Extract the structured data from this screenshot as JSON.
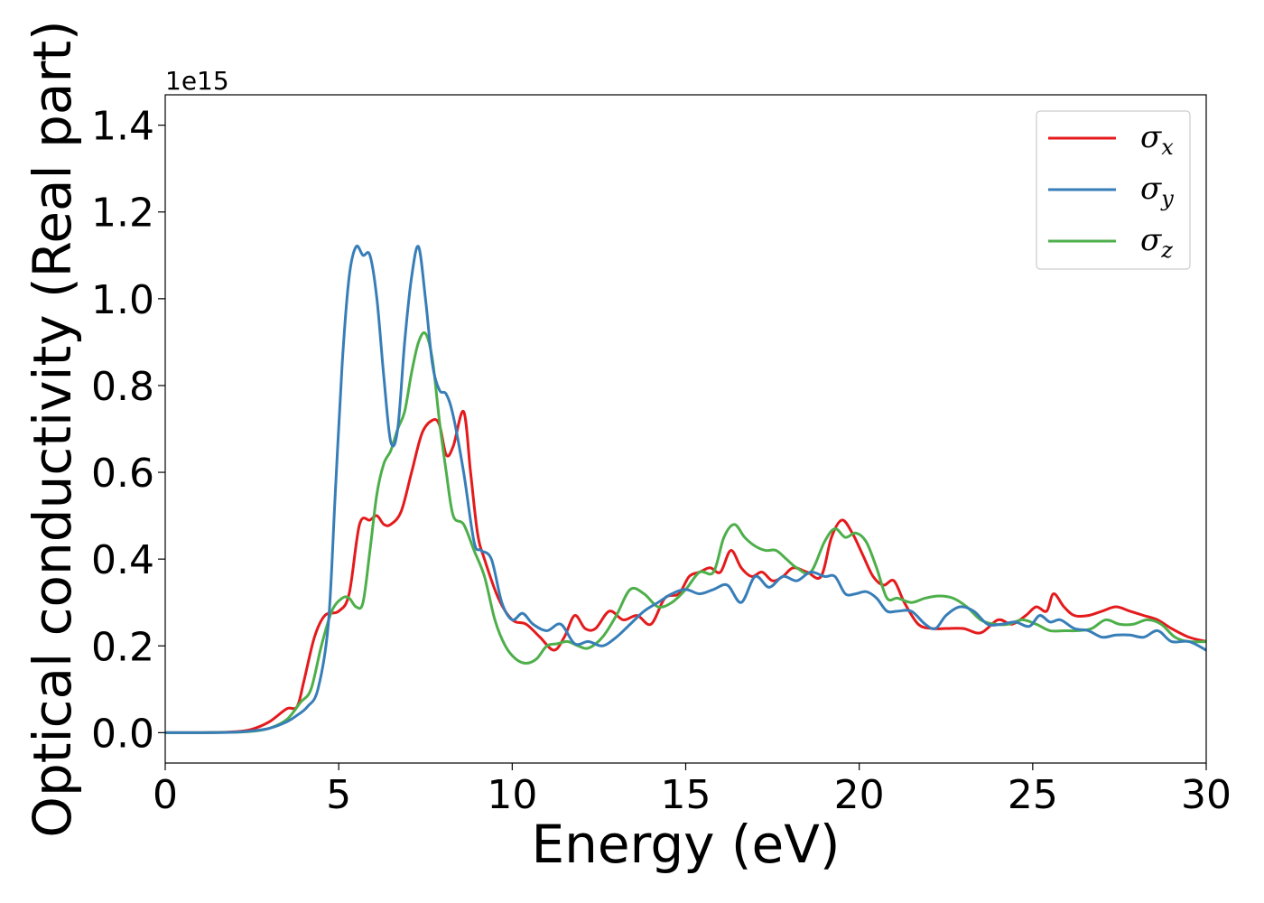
{
  "chart_data": {
    "type": "line",
    "xlabel": "Energy (eV)",
    "ylabel": "Optical conductivity (Real part)",
    "y_offset_text": "1e15",
    "xlim": [
      0,
      30
    ],
    "ylim": [
      -0.07,
      1.47
    ],
    "xticks": [
      0,
      5,
      10,
      15,
      20,
      25,
      30
    ],
    "xtick_labels": [
      "0",
      "5",
      "10",
      "15",
      "20",
      "25",
      "30"
    ],
    "yticks": [
      0.0,
      0.2,
      0.4,
      0.6,
      0.8,
      1.0,
      1.2,
      1.4
    ],
    "ytick_labels": [
      "0.0",
      "0.2",
      "0.4",
      "0.6",
      "0.8",
      "1.0",
      "1.2",
      "1.4"
    ],
    "grid": false,
    "legend_position": "top-right",
    "series": [
      {
        "name": "σx",
        "legend_base": "σ",
        "legend_sub": "x",
        "color": "#e41a1c",
        "x": [
          0,
          1,
          2,
          2.5,
          3,
          3.5,
          3.8,
          4.0,
          4.3,
          4.6,
          5.0,
          5.3,
          5.6,
          5.9,
          6.1,
          6.3,
          6.5,
          6.8,
          7.1,
          7.4,
          7.7,
          7.9,
          8.1,
          8.3,
          8.6,
          8.8,
          9.0,
          9.2,
          9.6,
          10.0,
          10.4,
          10.8,
          11.2,
          11.5,
          11.8,
          12.1,
          12.4,
          12.8,
          13.2,
          13.6,
          14.0,
          14.4,
          14.8,
          15.1,
          15.4,
          15.7,
          16.0,
          16.3,
          16.6,
          16.9,
          17.2,
          17.5,
          17.8,
          18.1,
          18.5,
          18.9,
          19.2,
          19.5,
          19.8,
          20.1,
          20.4,
          20.7,
          21.0,
          21.3,
          21.7,
          22.1,
          22.5,
          23.0,
          23.5,
          24.0,
          24.4,
          24.8,
          25.1,
          25.4,
          25.6,
          25.9,
          26.2,
          26.6,
          27.0,
          27.4,
          27.8,
          28.2,
          28.6,
          29.0,
          29.5,
          30.0
        ],
        "y": [
          0.0,
          0.0,
          0.002,
          0.008,
          0.025,
          0.055,
          0.06,
          0.12,
          0.22,
          0.27,
          0.28,
          0.32,
          0.48,
          0.49,
          0.5,
          0.48,
          0.48,
          0.51,
          0.6,
          0.69,
          0.72,
          0.71,
          0.64,
          0.66,
          0.74,
          0.6,
          0.46,
          0.4,
          0.31,
          0.26,
          0.25,
          0.22,
          0.19,
          0.22,
          0.27,
          0.24,
          0.24,
          0.28,
          0.26,
          0.27,
          0.25,
          0.31,
          0.32,
          0.36,
          0.37,
          0.38,
          0.37,
          0.42,
          0.38,
          0.36,
          0.37,
          0.35,
          0.36,
          0.38,
          0.37,
          0.36,
          0.45,
          0.49,
          0.46,
          0.41,
          0.36,
          0.34,
          0.35,
          0.3,
          0.25,
          0.24,
          0.24,
          0.24,
          0.23,
          0.26,
          0.25,
          0.27,
          0.29,
          0.28,
          0.32,
          0.29,
          0.27,
          0.27,
          0.28,
          0.29,
          0.28,
          0.27,
          0.26,
          0.24,
          0.22,
          0.21
        ]
      },
      {
        "name": "σy",
        "legend_base": "σ",
        "legend_sub": "y",
        "color": "#377eb8",
        "x": [
          0,
          1,
          2,
          2.5,
          3,
          3.5,
          3.8,
          4.1,
          4.4,
          4.7,
          4.9,
          5.1,
          5.3,
          5.5,
          5.7,
          5.9,
          6.1,
          6.3,
          6.5,
          6.7,
          6.9,
          7.1,
          7.3,
          7.5,
          7.7,
          7.9,
          8.1,
          8.3,
          8.6,
          8.9,
          9.1,
          9.4,
          9.7,
          10.0,
          10.3,
          10.6,
          11.0,
          11.4,
          11.8,
          12.2,
          12.6,
          13.0,
          13.4,
          13.8,
          14.2,
          14.6,
          15.0,
          15.4,
          15.8,
          16.2,
          16.6,
          17.0,
          17.4,
          17.8,
          18.2,
          18.6,
          19.0,
          19.3,
          19.6,
          19.9,
          20.2,
          20.5,
          20.8,
          21.1,
          21.5,
          21.9,
          22.2,
          22.5,
          22.9,
          23.3,
          23.7,
          24.1,
          24.5,
          24.9,
          25.2,
          25.5,
          25.8,
          26.2,
          26.6,
          27.0,
          27.4,
          27.8,
          28.2,
          28.6,
          29.0,
          29.5,
          30.0
        ],
        "y": [
          0.0,
          0.0,
          0.001,
          0.004,
          0.01,
          0.025,
          0.04,
          0.06,
          0.1,
          0.25,
          0.55,
          0.85,
          1.05,
          1.12,
          1.1,
          1.1,
          1.0,
          0.82,
          0.67,
          0.7,
          0.9,
          1.05,
          1.12,
          1.0,
          0.85,
          0.79,
          0.78,
          0.73,
          0.6,
          0.44,
          0.42,
          0.4,
          0.3,
          0.26,
          0.275,
          0.25,
          0.235,
          0.25,
          0.205,
          0.21,
          0.2,
          0.22,
          0.25,
          0.28,
          0.3,
          0.32,
          0.33,
          0.32,
          0.33,
          0.34,
          0.3,
          0.36,
          0.335,
          0.36,
          0.35,
          0.37,
          0.36,
          0.36,
          0.32,
          0.32,
          0.325,
          0.31,
          0.28,
          0.28,
          0.28,
          0.25,
          0.24,
          0.27,
          0.29,
          0.28,
          0.25,
          0.25,
          0.255,
          0.245,
          0.27,
          0.255,
          0.26,
          0.24,
          0.235,
          0.22,
          0.225,
          0.225,
          0.22,
          0.235,
          0.21,
          0.21,
          0.19
        ]
      },
      {
        "name": "σz",
        "legend_base": "σ",
        "legend_sub": "z",
        "color": "#4daf4a",
        "x": [
          0,
          1,
          2,
          2.5,
          3,
          3.5,
          3.9,
          4.2,
          4.5,
          4.8,
          5.1,
          5.3,
          5.5,
          5.7,
          5.9,
          6.1,
          6.3,
          6.5,
          6.7,
          6.9,
          7.1,
          7.3,
          7.5,
          7.7,
          7.9,
          8.1,
          8.3,
          8.6,
          8.9,
          9.2,
          9.5,
          9.8,
          10.1,
          10.4,
          10.7,
          11.0,
          11.3,
          11.6,
          11.9,
          12.2,
          12.6,
          13.0,
          13.4,
          13.8,
          14.2,
          14.6,
          15.0,
          15.4,
          15.8,
          16.1,
          16.4,
          16.7,
          17.0,
          17.3,
          17.6,
          17.9,
          18.2,
          18.6,
          19.0,
          19.3,
          19.6,
          19.9,
          20.2,
          20.5,
          20.8,
          21.1,
          21.5,
          21.9,
          22.3,
          22.7,
          23.1,
          23.5,
          23.9,
          24.3,
          24.7,
          25.1,
          25.5,
          25.9,
          26.3,
          26.7,
          27.1,
          27.5,
          27.9,
          28.3,
          28.7,
          29.1,
          29.5,
          30.0
        ],
        "y": [
          0.0,
          0.0,
          0.001,
          0.003,
          0.01,
          0.03,
          0.07,
          0.1,
          0.2,
          0.28,
          0.31,
          0.31,
          0.29,
          0.3,
          0.42,
          0.55,
          0.62,
          0.65,
          0.7,
          0.74,
          0.83,
          0.9,
          0.92,
          0.86,
          0.72,
          0.6,
          0.5,
          0.48,
          0.42,
          0.36,
          0.26,
          0.2,
          0.17,
          0.16,
          0.17,
          0.2,
          0.205,
          0.21,
          0.2,
          0.195,
          0.22,
          0.27,
          0.33,
          0.32,
          0.29,
          0.3,
          0.33,
          0.37,
          0.37,
          0.45,
          0.48,
          0.45,
          0.43,
          0.42,
          0.42,
          0.4,
          0.38,
          0.37,
          0.44,
          0.47,
          0.45,
          0.46,
          0.44,
          0.38,
          0.31,
          0.31,
          0.3,
          0.31,
          0.315,
          0.31,
          0.29,
          0.26,
          0.25,
          0.25,
          0.26,
          0.25,
          0.235,
          0.235,
          0.235,
          0.24,
          0.26,
          0.25,
          0.25,
          0.26,
          0.25,
          0.22,
          0.21,
          0.21
        ]
      }
    ]
  }
}
